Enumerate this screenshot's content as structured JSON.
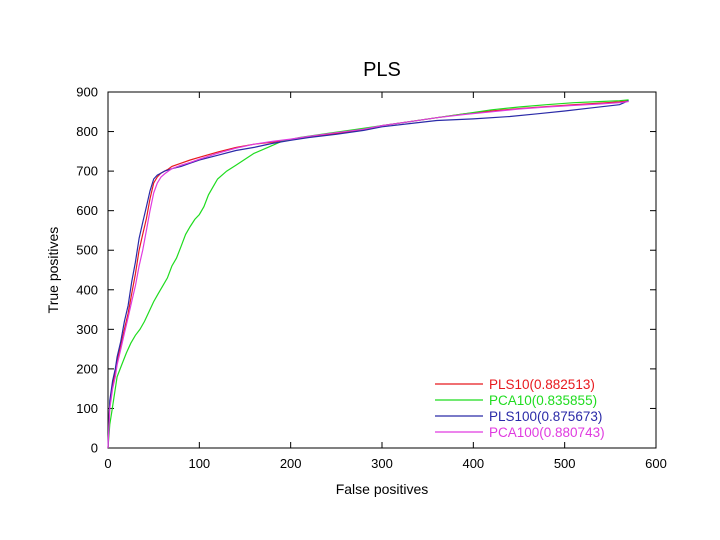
{
  "chart_data": {
    "type": "line",
    "title": "PLS",
    "xlabel": "False positives",
    "ylabel": "True positives",
    "xlim": [
      0,
      600
    ],
    "ylim": [
      0,
      900
    ],
    "xticks": [
      0,
      100,
      200,
      300,
      400,
      500,
      600
    ],
    "yticks": [
      0,
      100,
      200,
      300,
      400,
      500,
      600,
      700,
      800,
      900
    ],
    "grid": false,
    "legend_position": "bottom-right",
    "series": [
      {
        "name": "PLS10(0.882513)",
        "color": "#e8191e",
        "x": [
          0,
          2,
          5,
          8,
          10,
          14,
          18,
          22,
          26,
          30,
          34,
          38,
          42,
          46,
          50,
          54,
          58,
          62,
          66,
          70,
          80,
          90,
          100,
          120,
          140,
          160,
          180,
          200,
          220,
          250,
          280,
          300,
          330,
          360,
          390,
          420,
          450,
          480,
          510,
          540,
          560,
          570
        ],
        "y": [
          0,
          110,
          160,
          190,
          220,
          260,
          300,
          340,
          390,
          440,
          500,
          540,
          580,
          630,
          670,
          685,
          695,
          700,
          705,
          712,
          720,
          728,
          735,
          748,
          760,
          768,
          773,
          780,
          787,
          795,
          805,
          815,
          825,
          835,
          845,
          852,
          858,
          863,
          868,
          872,
          875,
          878
        ]
      },
      {
        "name": "PCA10(0.835855)",
        "color": "#1fdc1f",
        "x": [
          0,
          2,
          4,
          6,
          8,
          10,
          15,
          20,
          25,
          30,
          35,
          40,
          45,
          50,
          55,
          60,
          65,
          70,
          75,
          80,
          85,
          90,
          95,
          100,
          105,
          110,
          115,
          120,
          130,
          140,
          150,
          160,
          175,
          190,
          210,
          240,
          270,
          300,
          330,
          360,
          390,
          420,
          450,
          480,
          510,
          540,
          560,
          570
        ],
        "y": [
          0,
          60,
          90,
          120,
          150,
          180,
          210,
          240,
          265,
          285,
          300,
          320,
          345,
          370,
          390,
          410,
          430,
          460,
          480,
          510,
          540,
          560,
          578,
          590,
          610,
          640,
          660,
          680,
          700,
          715,
          730,
          745,
          760,
          775,
          785,
          795,
          805,
          815,
          825,
          835,
          845,
          855,
          862,
          868,
          873,
          876,
          878,
          880
        ]
      },
      {
        "name": "PLS100(0.875673)",
        "color": "#2a2aa8",
        "x": [
          0,
          2,
          5,
          8,
          10,
          14,
          18,
          22,
          26,
          30,
          34,
          38,
          42,
          46,
          50,
          54,
          58,
          62,
          66,
          70,
          80,
          90,
          100,
          120,
          140,
          160,
          180,
          200,
          220,
          250,
          280,
          300,
          330,
          360,
          400,
          440,
          470,
          500,
          530,
          560,
          570
        ],
        "y": [
          0,
          120,
          170,
          200,
          230,
          270,
          320,
          360,
          420,
          470,
          530,
          570,
          610,
          650,
          680,
          690,
          695,
          700,
          703,
          706,
          712,
          720,
          728,
          740,
          752,
          760,
          770,
          778,
          785,
          793,
          803,
          812,
          820,
          828,
          832,
          838,
          845,
          852,
          860,
          868,
          878
        ]
      },
      {
        "name": "PCA100(0.880743)",
        "color": "#e03ae0",
        "x": [
          0,
          2,
          5,
          8,
          10,
          14,
          18,
          22,
          26,
          30,
          34,
          38,
          42,
          46,
          50,
          54,
          58,
          62,
          66,
          70,
          80,
          90,
          100,
          120,
          140,
          160,
          180,
          200,
          220,
          250,
          280,
          300,
          330,
          360,
          390,
          420,
          450,
          480,
          510,
          540,
          560,
          570
        ],
        "y": [
          0,
          100,
          150,
          180,
          210,
          250,
          290,
          330,
          370,
          410,
          460,
          500,
          550,
          600,
          645,
          670,
          685,
          693,
          700,
          706,
          715,
          722,
          730,
          745,
          758,
          768,
          775,
          781,
          788,
          797,
          806,
          815,
          825,
          835,
          843,
          850,
          857,
          862,
          866,
          870,
          873,
          876
        ]
      }
    ]
  }
}
